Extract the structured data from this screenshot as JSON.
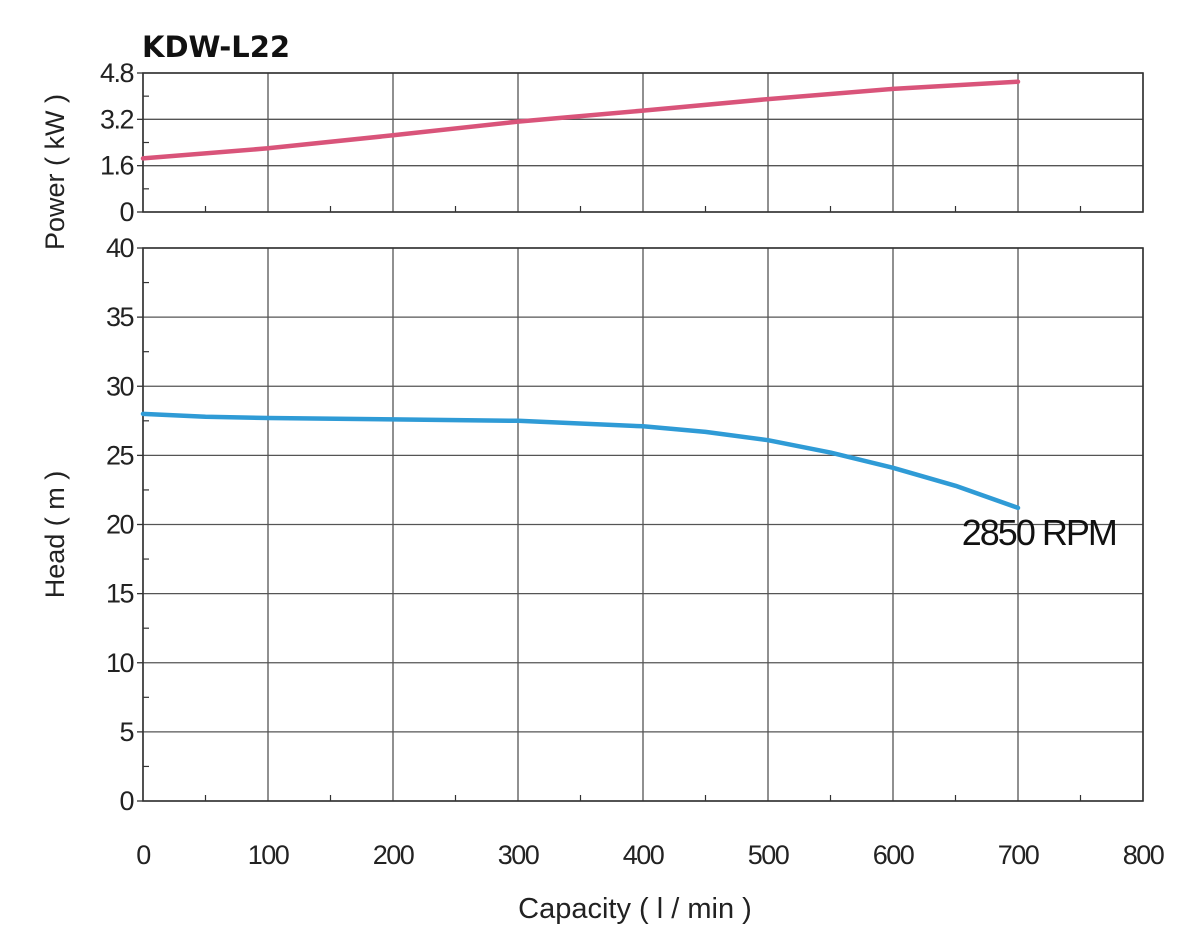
{
  "chart_data": {
    "title": "KDW-L22",
    "x": {
      "label": "Capacity ( l / min )",
      "lim": [
        0,
        800
      ],
      "ticks": [
        0,
        100,
        200,
        300,
        400,
        500,
        600,
        700,
        800
      ]
    },
    "panels": [
      {
        "type": "line",
        "ylabel": "Power ( kW )",
        "ylim": [
          0,
          4.8
        ],
        "yticks": [
          0,
          1.6,
          3.2,
          4.8
        ],
        "ytick_labels": [
          "0",
          "1.6",
          "3.2",
          "4.8"
        ],
        "series": [
          {
            "color": "#d9547a",
            "points": [
              [
                0,
                1.85
              ],
              [
                100,
                2.2
              ],
              [
                200,
                2.65
              ],
              [
                300,
                3.12
              ],
              [
                400,
                3.5
              ],
              [
                500,
                3.9
              ],
              [
                600,
                4.25
              ],
              [
                700,
                4.5
              ]
            ]
          }
        ]
      },
      {
        "type": "line",
        "ylabel": "Head ( m )",
        "ylim": [
          0,
          40
        ],
        "yticks": [
          0,
          5,
          10,
          15,
          20,
          25,
          30,
          35,
          40
        ],
        "ytick_labels": [
          "0",
          "5",
          "10",
          "15",
          "20",
          "25",
          "30",
          "35",
          "40"
        ],
        "series": [
          {
            "color": "#2f9bd6",
            "points": [
              [
                0,
                28.0
              ],
              [
                50,
                27.8
              ],
              [
                100,
                27.7
              ],
              [
                200,
                27.6
              ],
              [
                300,
                27.5
              ],
              [
                400,
                27.1
              ],
              [
                450,
                26.7
              ],
              [
                500,
                26.1
              ],
              [
                550,
                25.2
              ],
              [
                600,
                24.1
              ],
              [
                650,
                22.8
              ],
              [
                700,
                21.2
              ]
            ]
          }
        ],
        "annotations": [
          {
            "text": "2850 RPM",
            "x": 655,
            "y": 18.5
          }
        ]
      }
    ],
    "grid": true
  }
}
